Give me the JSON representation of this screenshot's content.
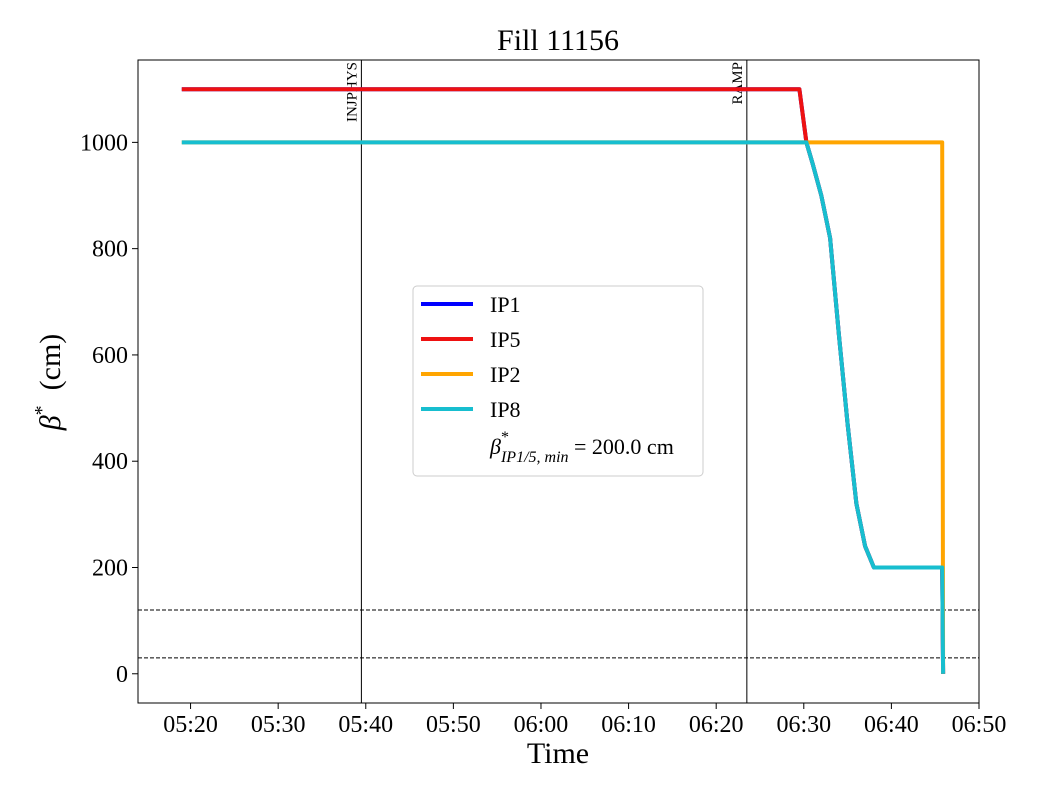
{
  "chart_data": {
    "type": "line",
    "title": "Fill 11156",
    "xlabel": "Time",
    "ylabel": "β* (cm)",
    "xlim": [
      "05:14",
      "06:50"
    ],
    "ylim": [
      -55,
      1155
    ],
    "x_ticks": [
      "05:20",
      "05:30",
      "05:40",
      "05:50",
      "06:00",
      "06:10",
      "06:20",
      "06:30",
      "06:40",
      "06:50"
    ],
    "y_ticks": [
      0,
      200,
      400,
      600,
      800,
      1000
    ],
    "grid": false,
    "legend_position": "center",
    "series": [
      {
        "name": "IP1",
        "color": "#0000ff",
        "x": [
          "05:19",
          "06:29.5",
          "06:30.3",
          "06:31",
          "06:32",
          "06:33",
          "06:34",
          "06:35",
          "06:36",
          "06:37",
          "06:38",
          "06:45.8",
          "06:45.9"
        ],
        "y": [
          1100,
          1100,
          1000,
          960,
          900,
          820,
          640,
          470,
          320,
          240,
          200,
          200,
          0
        ]
      },
      {
        "name": "IP5",
        "color": "#ee1111",
        "x": [
          "05:19",
          "06:29.5",
          "06:30.3",
          "06:31",
          "06:32",
          "06:33",
          "06:34",
          "06:35",
          "06:36",
          "06:37",
          "06:38",
          "06:45.8",
          "06:45.9"
        ],
        "y": [
          1100,
          1100,
          1000,
          960,
          900,
          820,
          640,
          470,
          320,
          240,
          200,
          200,
          0
        ]
      },
      {
        "name": "IP2",
        "color": "#ffa500",
        "x": [
          "05:19",
          "06:45.8",
          "06:45.9"
        ],
        "y": [
          1000,
          1000,
          0
        ]
      },
      {
        "name": "IP8",
        "color": "#17becf",
        "x": [
          "05:19",
          "06:30.3",
          "06:31",
          "06:32",
          "06:33",
          "06:34",
          "06:35",
          "06:36",
          "06:37",
          "06:38",
          "06:45.8",
          "06:45.9"
        ],
        "y": [
          1000,
          1000,
          960,
          900,
          820,
          640,
          470,
          320,
          240,
          200,
          200,
          0
        ]
      }
    ],
    "vertical_events": [
      {
        "label": "INJPHYS",
        "x": "05:39.5"
      },
      {
        "label": "RAMP",
        "x": "06:23.5"
      }
    ],
    "horizontal_reference_lines": [
      120,
      30
    ],
    "legend_extra": {
      "label_main": "β",
      "label_sup": "*",
      "label_sub": "IP1/5, min",
      "label_value": " = 200.0 cm"
    }
  }
}
